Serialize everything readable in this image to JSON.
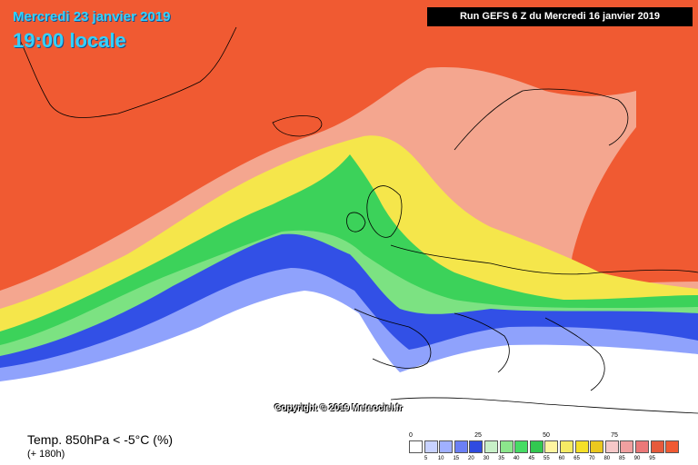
{
  "header": {
    "date": "Mercredi 23 janvier 2019",
    "time": "19:00 locale",
    "run": "Run GEFS 6 Z du Mercredi 16 janvier 2019"
  },
  "copyright": "Copyright © 2019 Meteociel.fr",
  "legend": {
    "title": "Temp. 850hPa < -5°C (%)",
    "subtitle": "(+ 180h)",
    "major_labels": [
      "0",
      "25",
      "50",
      "75"
    ],
    "minor_labels": [
      "5",
      "10",
      "15",
      "20",
      "30",
      "35",
      "40",
      "45",
      "55",
      "60",
      "65",
      "70",
      "80",
      "85",
      "90",
      "95"
    ],
    "colors": [
      "#ffffff",
      "#c8d2ff",
      "#a0b0ff",
      "#6b7ff5",
      "#2f4be0",
      "#c8f0c8",
      "#8ce68c",
      "#46dc64",
      "#32c850",
      "#fff5a0",
      "#f5eb64",
      "#f5e028",
      "#ebc81e",
      "#f5c8c8",
      "#f0a0a0",
      "#eb7878",
      "#e65a3c",
      "#f05a32"
    ]
  },
  "map_colors": {
    "red": "#f05a32",
    "pink": "#f5b4a0",
    "yellow": "#f5e64b",
    "green": "#3cd25a",
    "light_green": "#8ce68c",
    "blue": "#3250e6",
    "light_blue": "#a0b0ff",
    "white": "#ffffff"
  }
}
